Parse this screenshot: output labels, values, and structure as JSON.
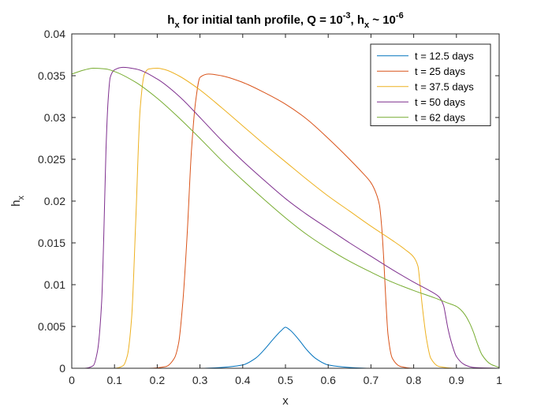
{
  "chart_data": {
    "type": "line",
    "title": {
      "parts": [
        {
          "text": "h",
          "style": "normal"
        },
        {
          "text": "x",
          "style": "sub"
        },
        {
          "text": " for initial tanh profile, Q = 10",
          "style": "normal"
        },
        {
          "text": "-3",
          "style": "sup"
        },
        {
          "text": ", h",
          "style": "normal"
        },
        {
          "text": "x",
          "style": "sub"
        },
        {
          "text": " ~ 10",
          "style": "normal"
        },
        {
          "text": "-6",
          "style": "sup"
        }
      ]
    },
    "xlabel": "x",
    "ylabel": {
      "main": "h",
      "sub": "x"
    },
    "xlim": [
      0,
      1
    ],
    "ylim": [
      0,
      0.04
    ],
    "xticks": [
      0,
      0.1,
      0.2,
      0.3,
      0.4,
      0.5,
      0.6,
      0.7,
      0.8,
      0.9,
      1
    ],
    "xtick_labels": [
      "0",
      "0.1",
      "0.2",
      "0.3",
      "0.4",
      "0.5",
      "0.6",
      "0.7",
      "0.8",
      "0.9",
      "1"
    ],
    "yticks": [
      0,
      0.005,
      0.01,
      0.015,
      0.02,
      0.025,
      0.03,
      0.035,
      0.04
    ],
    "ytick_labels": [
      "0",
      "0.005",
      "0.01",
      "0.015",
      "0.02",
      "0.025",
      "0.03",
      "0.035",
      "0.04"
    ],
    "grid": false,
    "legend_position": "top-right",
    "series": [
      {
        "name": "t = 12.5 days",
        "color": "#0072BD",
        "x": [
          0,
          0.3,
          0.35,
          0.4,
          0.43,
          0.45,
          0.47,
          0.49,
          0.5,
          0.51,
          0.53,
          0.55,
          0.57,
          0.6,
          0.65,
          0.7,
          1.0
        ],
        "y": [
          0,
          0,
          0.0001,
          0.0004,
          0.0012,
          0.0022,
          0.0034,
          0.0045,
          0.0049,
          0.0046,
          0.0035,
          0.0022,
          0.0012,
          0.0004,
          0.0001,
          0,
          0
        ]
      },
      {
        "name": "t = 25 days",
        "color": "#D95319",
        "x": [
          0,
          0.18,
          0.22,
          0.24,
          0.25,
          0.26,
          0.27,
          0.28,
          0.29,
          0.3,
          0.32,
          0.35,
          0.4,
          0.45,
          0.5,
          0.55,
          0.6,
          0.65,
          0.68,
          0.7,
          0.71,
          0.72,
          0.725,
          0.73,
          0.735,
          0.74,
          0.75,
          0.77,
          0.8,
          1.0
        ],
        "y": [
          0,
          0,
          0.0002,
          0.0012,
          0.003,
          0.008,
          0.016,
          0.026,
          0.032,
          0.0348,
          0.0352,
          0.035,
          0.0342,
          0.033,
          0.0316,
          0.0298,
          0.0275,
          0.025,
          0.0234,
          0.0222,
          0.0212,
          0.0195,
          0.017,
          0.013,
          0.008,
          0.004,
          0.0012,
          0.0002,
          0,
          0
        ]
      },
      {
        "name": "t = 37.5 days",
        "color": "#EDB120",
        "x": [
          0,
          0.1,
          0.12,
          0.13,
          0.14,
          0.15,
          0.16,
          0.17,
          0.18,
          0.2,
          0.22,
          0.25,
          0.3,
          0.35,
          0.4,
          0.45,
          0.5,
          0.55,
          0.6,
          0.65,
          0.7,
          0.75,
          0.78,
          0.8,
          0.81,
          0.815,
          0.82,
          0.83,
          0.84,
          0.86,
          0.9,
          1.0
        ],
        "y": [
          0,
          0,
          0.0003,
          0.0015,
          0.006,
          0.018,
          0.031,
          0.0352,
          0.0358,
          0.0359,
          0.0357,
          0.035,
          0.0333,
          0.0312,
          0.029,
          0.0268,
          0.0247,
          0.0226,
          0.0206,
          0.0188,
          0.017,
          0.0153,
          0.0142,
          0.0133,
          0.0122,
          0.01,
          0.0075,
          0.0035,
          0.0012,
          0.0002,
          0,
          0
        ]
      },
      {
        "name": "t = 50 days",
        "color": "#7E2F8E",
        "x": [
          0,
          0.03,
          0.05,
          0.06,
          0.07,
          0.075,
          0.08,
          0.085,
          0.09,
          0.1,
          0.12,
          0.15,
          0.2,
          0.25,
          0.3,
          0.35,
          0.4,
          0.45,
          0.5,
          0.55,
          0.6,
          0.65,
          0.7,
          0.75,
          0.8,
          0.84,
          0.86,
          0.87,
          0.875,
          0.88,
          0.89,
          0.9,
          0.92,
          0.94,
          1.0
        ],
        "y": [
          0,
          0,
          0.0003,
          0.002,
          0.008,
          0.016,
          0.026,
          0.032,
          0.0348,
          0.0357,
          0.036,
          0.0358,
          0.0346,
          0.0326,
          0.03,
          0.0273,
          0.0248,
          0.0225,
          0.0203,
          0.0184,
          0.0167,
          0.015,
          0.0134,
          0.0118,
          0.0103,
          0.0092,
          0.0085,
          0.0075,
          0.0062,
          0.0048,
          0.0028,
          0.0014,
          0.0004,
          0.0001,
          0
        ]
      },
      {
        "name": "t = 62 days",
        "color": "#77AC30",
        "x": [
          0,
          0.03,
          0.05,
          0.08,
          0.1,
          0.15,
          0.2,
          0.25,
          0.3,
          0.35,
          0.4,
          0.45,
          0.5,
          0.55,
          0.6,
          0.65,
          0.7,
          0.75,
          0.8,
          0.85,
          0.88,
          0.9,
          0.91,
          0.92,
          0.93,
          0.94,
          0.95,
          0.96,
          0.98,
          1.0
        ],
        "y": [
          0.0352,
          0.0357,
          0.0359,
          0.0358,
          0.0355,
          0.0342,
          0.0323,
          0.03,
          0.0275,
          0.0249,
          0.0225,
          0.0202,
          0.018,
          0.016,
          0.0143,
          0.0128,
          0.0115,
          0.0103,
          0.0093,
          0.0084,
          0.0078,
          0.0074,
          0.007,
          0.0064,
          0.0055,
          0.0043,
          0.0028,
          0.0016,
          0.0005,
          0.0001
        ]
      }
    ]
  }
}
